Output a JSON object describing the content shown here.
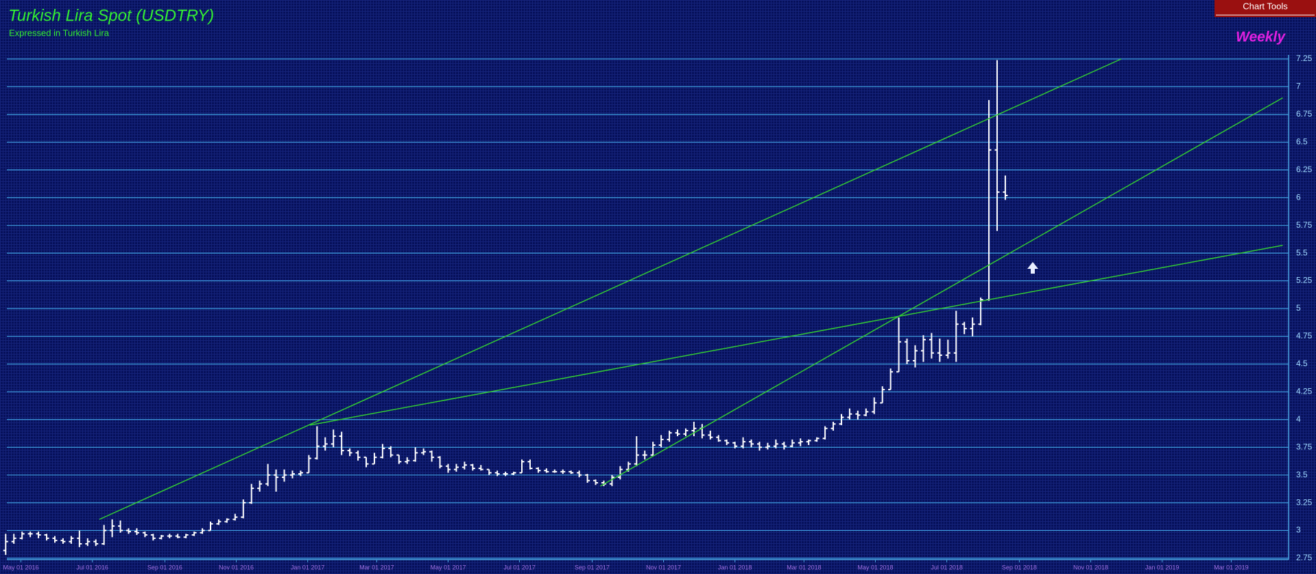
{
  "toolbar": {
    "button": "Chart Tools"
  },
  "chart_data": {
    "type": "ohlc",
    "title": "Turkish Lira Spot (USDTRY)",
    "subtitle": "Expressed in Turkish Lira",
    "period": "Weekly",
    "color": "#ffffff",
    "grid": true,
    "xlim": [
      "2016-04-19",
      "2019-04-19"
    ],
    "ylim": [
      2.75,
      7.25
    ],
    "yticks": [
      2.75,
      3,
      3.25,
      3.5,
      3.75,
      4,
      4.25,
      4.5,
      4.75,
      5,
      5.25,
      5.5,
      5.75,
      6,
      6.25,
      6.5,
      6.75,
      7,
      7.25
    ],
    "xticks": [
      {
        "value": "2016-05-01",
        "label": "May 01 2016"
      },
      {
        "value": "2016-07-01",
        "label": "Jul 01 2016"
      },
      {
        "value": "2016-09-01",
        "label": "Sep 01 2016"
      },
      {
        "value": "2016-11-01",
        "label": "Nov 01 2016"
      },
      {
        "value": "2017-01-01",
        "label": "Jan 01 2017"
      },
      {
        "value": "2017-03-01",
        "label": "Mar 01 2017"
      },
      {
        "value": "2017-05-01",
        "label": "May 01 2017"
      },
      {
        "value": "2017-07-01",
        "label": "Jul 01 2017"
      },
      {
        "value": "2017-09-01",
        "label": "Sep 01 2017"
      },
      {
        "value": "2017-11-01",
        "label": "Nov 01 2017"
      },
      {
        "value": "2018-01-01",
        "label": "Jan 01 2018"
      },
      {
        "value": "2018-03-01",
        "label": "Mar 01 2018"
      },
      {
        "value": "2018-05-01",
        "label": "May 01 2018"
      },
      {
        "value": "2018-07-01",
        "label": "Jul 01 2018"
      },
      {
        "value": "2018-09-01",
        "label": "Sep 01 2018"
      },
      {
        "value": "2018-11-01",
        "label": "Nov 01 2018"
      },
      {
        "value": "2019-01-01",
        "label": "Jan 01 2019"
      },
      {
        "value": "2019-03-01",
        "label": "Mar 01 2019"
      }
    ],
    "x": [
      "2016-04-18",
      "2016-04-25",
      "2016-05-02",
      "2016-05-09",
      "2016-05-16",
      "2016-05-23",
      "2016-05-30",
      "2016-06-06",
      "2016-06-13",
      "2016-06-20",
      "2016-06-27",
      "2016-07-04",
      "2016-07-11",
      "2016-07-18",
      "2016-07-25",
      "2016-08-01",
      "2016-08-08",
      "2016-08-15",
      "2016-08-22",
      "2016-08-29",
      "2016-09-05",
      "2016-09-12",
      "2016-09-19",
      "2016-09-26",
      "2016-10-03",
      "2016-10-10",
      "2016-10-17",
      "2016-10-24",
      "2016-10-31",
      "2016-11-07",
      "2016-11-14",
      "2016-11-21",
      "2016-11-28",
      "2016-12-05",
      "2016-12-12",
      "2016-12-19",
      "2016-12-26",
      "2017-01-02",
      "2017-01-09",
      "2017-01-16",
      "2017-01-23",
      "2017-01-30",
      "2017-02-06",
      "2017-02-13",
      "2017-02-20",
      "2017-02-27",
      "2017-03-06",
      "2017-03-13",
      "2017-03-20",
      "2017-03-27",
      "2017-04-03",
      "2017-04-10",
      "2017-04-17",
      "2017-04-24",
      "2017-05-01",
      "2017-05-08",
      "2017-05-15",
      "2017-05-22",
      "2017-05-29",
      "2017-06-05",
      "2017-06-12",
      "2017-06-19",
      "2017-06-26",
      "2017-07-03",
      "2017-07-10",
      "2017-07-17",
      "2017-07-24",
      "2017-07-31",
      "2017-08-07",
      "2017-08-14",
      "2017-08-21",
      "2017-08-28",
      "2017-09-04",
      "2017-09-11",
      "2017-09-18",
      "2017-09-25",
      "2017-10-02",
      "2017-10-09",
      "2017-10-16",
      "2017-10-23",
      "2017-10-30",
      "2017-11-06",
      "2017-11-13",
      "2017-11-20",
      "2017-11-27",
      "2017-12-04",
      "2017-12-11",
      "2017-12-18",
      "2017-12-25",
      "2018-01-01",
      "2018-01-08",
      "2018-01-15",
      "2018-01-22",
      "2018-01-29",
      "2018-02-05",
      "2018-02-12",
      "2018-02-19",
      "2018-02-26",
      "2018-03-05",
      "2018-03-12",
      "2018-03-19",
      "2018-03-26",
      "2018-04-02",
      "2018-04-09",
      "2018-04-16",
      "2018-04-23",
      "2018-04-30",
      "2018-05-07",
      "2018-05-14",
      "2018-05-21",
      "2018-05-28",
      "2018-06-04",
      "2018-06-11",
      "2018-06-18",
      "2018-06-25",
      "2018-07-02",
      "2018-07-09",
      "2018-07-16",
      "2018-07-23",
      "2018-07-30",
      "2018-08-06",
      "2018-08-13",
      "2018-08-20"
    ],
    "open": [
      2.82,
      2.9,
      2.93,
      2.97,
      2.97,
      2.96,
      2.93,
      2.91,
      2.9,
      2.93,
      2.88,
      2.9,
      2.88,
      3.0,
      3.04,
      3.0,
      2.99,
      2.98,
      2.96,
      2.93,
      2.95,
      2.95,
      2.94,
      2.96,
      2.98,
      3.0,
      3.06,
      3.08,
      3.1,
      3.12,
      3.25,
      3.38,
      3.42,
      3.5,
      3.48,
      3.5,
      3.51,
      3.52,
      3.65,
      3.76,
      3.78,
      3.85,
      3.72,
      3.7,
      3.66,
      3.6,
      3.66,
      3.74,
      3.68,
      3.62,
      3.63,
      3.7,
      3.71,
      3.66,
      3.58,
      3.55,
      3.57,
      3.59,
      3.56,
      3.55,
      3.52,
      3.51,
      3.51,
      3.52,
      3.62,
      3.56,
      3.54,
      3.53,
      3.53,
      3.53,
      3.52,
      3.5,
      3.45,
      3.43,
      3.42,
      3.48,
      3.55,
      3.6,
      3.68,
      3.68,
      3.77,
      3.82,
      3.88,
      3.87,
      3.9,
      3.92,
      3.86,
      3.84,
      3.81,
      3.79,
      3.76,
      3.8,
      3.78,
      3.75,
      3.76,
      3.78,
      3.76,
      3.79,
      3.8,
      3.81,
      3.83,
      3.92,
      3.96,
      4.02,
      4.05,
      4.04,
      4.07,
      4.15,
      4.27,
      4.43,
      4.7,
      4.53,
      4.62,
      4.72,
      4.6,
      4.58,
      4.6,
      4.86,
      4.82,
      4.86,
      5.08,
      6.43,
      6.05
    ],
    "high": [
      2.97,
      2.97,
      2.99,
      2.99,
      2.99,
      2.97,
      2.95,
      2.93,
      2.95,
      3.0,
      2.93,
      2.92,
      3.05,
      3.1,
      3.09,
      3.02,
      3.02,
      2.99,
      2.97,
      2.96,
      2.97,
      2.97,
      2.97,
      2.99,
      3.02,
      3.08,
      3.1,
      3.11,
      3.15,
      3.28,
      3.42,
      3.45,
      3.6,
      3.55,
      3.55,
      3.54,
      3.54,
      3.68,
      3.94,
      3.84,
      3.91,
      3.89,
      3.74,
      3.72,
      3.66,
      3.7,
      3.78,
      3.76,
      3.68,
      3.66,
      3.75,
      3.74,
      3.72,
      3.67,
      3.6,
      3.6,
      3.62,
      3.6,
      3.59,
      3.55,
      3.54,
      3.53,
      3.53,
      3.64,
      3.64,
      3.57,
      3.56,
      3.55,
      3.55,
      3.54,
      3.54,
      3.51,
      3.46,
      3.45,
      3.5,
      3.58,
      3.62,
      3.85,
      3.72,
      3.8,
      3.86,
      3.9,
      3.91,
      3.92,
      3.98,
      3.96,
      3.9,
      3.86,
      3.82,
      3.8,
      3.84,
      3.82,
      3.8,
      3.79,
      3.82,
      3.8,
      3.82,
      3.83,
      3.82,
      3.84,
      3.94,
      3.98,
      4.05,
      4.1,
      4.08,
      4.1,
      4.2,
      4.3,
      4.46,
      4.92,
      4.73,
      4.67,
      4.76,
      4.78,
      4.73,
      4.72,
      4.98,
      4.88,
      4.92,
      5.1,
      6.88,
      7.24,
      6.2
    ],
    "low": [
      2.78,
      2.88,
      2.92,
      2.94,
      2.93,
      2.91,
      2.89,
      2.88,
      2.88,
      2.85,
      2.86,
      2.86,
      2.87,
      2.94,
      2.98,
      2.97,
      2.96,
      2.94,
      2.91,
      2.92,
      2.93,
      2.93,
      2.93,
      2.95,
      2.97,
      3.0,
      3.05,
      3.07,
      3.09,
      3.11,
      3.24,
      3.35,
      3.4,
      3.35,
      3.44,
      3.47,
      3.49,
      3.52,
      3.64,
      3.72,
      3.75,
      3.68,
      3.67,
      3.63,
      3.57,
      3.6,
      3.65,
      3.66,
      3.6,
      3.6,
      3.62,
      3.68,
      3.62,
      3.56,
      3.52,
      3.53,
      3.55,
      3.54,
      3.54,
      3.5,
      3.49,
      3.49,
      3.5,
      3.52,
      3.55,
      3.52,
      3.52,
      3.52,
      3.51,
      3.51,
      3.48,
      3.43,
      3.41,
      3.4,
      3.4,
      3.46,
      3.53,
      3.58,
      3.64,
      3.67,
      3.75,
      3.8,
      3.85,
      3.85,
      3.85,
      3.83,
      3.82,
      3.8,
      3.77,
      3.74,
      3.74,
      3.75,
      3.72,
      3.73,
      3.74,
      3.73,
      3.75,
      3.76,
      3.77,
      3.8,
      3.82,
      3.9,
      3.95,
      4.0,
      4.0,
      4.03,
      4.05,
      4.15,
      4.27,
      4.43,
      4.5,
      4.47,
      4.52,
      4.55,
      4.52,
      4.55,
      4.52,
      4.77,
      4.75,
      4.85,
      5.07,
      5.7,
      5.98
    ],
    "close": [
      2.9,
      2.93,
      2.97,
      2.97,
      2.96,
      2.93,
      2.91,
      2.9,
      2.93,
      2.88,
      2.9,
      2.88,
      3.0,
      3.04,
      3.0,
      2.99,
      2.98,
      2.96,
      2.93,
      2.95,
      2.95,
      2.94,
      2.96,
      2.98,
      3.0,
      3.06,
      3.08,
      3.1,
      3.12,
      3.25,
      3.38,
      3.42,
      3.5,
      3.48,
      3.5,
      3.51,
      3.52,
      3.65,
      3.76,
      3.78,
      3.85,
      3.72,
      3.7,
      3.66,
      3.6,
      3.66,
      3.74,
      3.68,
      3.62,
      3.63,
      3.7,
      3.71,
      3.66,
      3.58,
      3.55,
      3.57,
      3.59,
      3.56,
      3.55,
      3.52,
      3.51,
      3.51,
      3.52,
      3.62,
      3.56,
      3.54,
      3.53,
      3.53,
      3.53,
      3.52,
      3.5,
      3.45,
      3.43,
      3.42,
      3.48,
      3.55,
      3.6,
      3.68,
      3.68,
      3.77,
      3.82,
      3.88,
      3.87,
      3.9,
      3.92,
      3.86,
      3.84,
      3.81,
      3.79,
      3.76,
      3.8,
      3.78,
      3.75,
      3.76,
      3.78,
      3.76,
      3.79,
      3.8,
      3.81,
      3.83,
      3.92,
      3.96,
      4.02,
      4.05,
      4.04,
      4.07,
      4.15,
      4.27,
      4.43,
      4.7,
      4.53,
      4.62,
      4.72,
      4.6,
      4.58,
      4.6,
      4.86,
      4.82,
      4.86,
      5.08,
      6.43,
      6.05,
      6.02
    ],
    "trendline_color": "#33cc33",
    "trendlines": [
      {
        "x": [
          "2016-07-07",
          "2018-11-27"
        ],
        "y": [
          3.1,
          7.25
        ]
      },
      {
        "x": [
          "2017-09-08",
          "2019-04-14"
        ],
        "y": [
          3.4,
          6.9
        ]
      },
      {
        "x": [
          "2017-01-03",
          "2019-04-14"
        ],
        "y": [
          3.95,
          5.57
        ]
      }
    ]
  }
}
